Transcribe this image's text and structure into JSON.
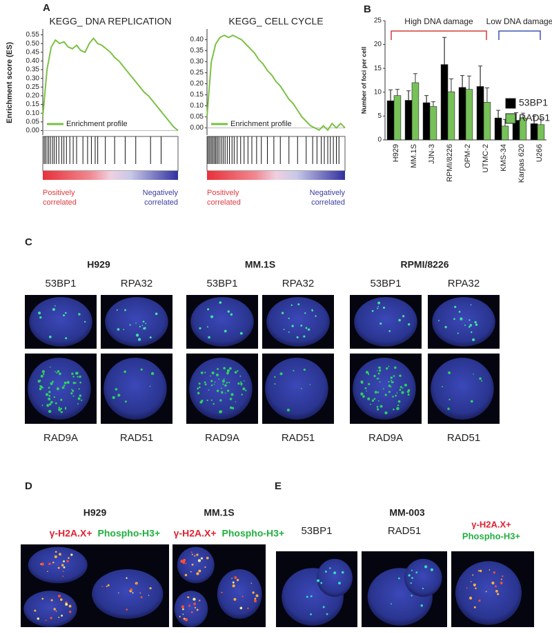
{
  "panels": {
    "a": "A",
    "b": "B",
    "c": "C",
    "d": "D",
    "e": "E"
  },
  "chart_data": [
    {
      "type": "line",
      "title": "KEGG_ DNA REPLICATION",
      "ylabel": "Enrichment score (ES)",
      "series": [
        {
          "name": "Enrichment profile",
          "color": "#7ac143",
          "values": [
            0.08,
            0.35,
            0.48,
            0.52,
            0.5,
            0.51,
            0.48,
            0.47,
            0.49,
            0.46,
            0.45,
            0.5,
            0.53,
            0.5,
            0.49,
            0.47,
            0.45,
            0.42,
            0.4,
            0.37,
            0.34,
            0.31,
            0.28,
            0.25,
            0.22,
            0.2,
            0.17,
            0.14,
            0.11,
            0.08,
            0.05,
            0.02,
            0.0
          ]
        }
      ],
      "hits": [
        0.3,
        0.6,
        1,
        1.4,
        1.8,
        2.3,
        2.7,
        3.2,
        3.8,
        4.5,
        5,
        5.6,
        6.4,
        7.2,
        8,
        9.5,
        10.6,
        11.5,
        12.4,
        13,
        14.8,
        17,
        19.5,
        22,
        25.5,
        28
      ],
      "ylim": [
        -0.01,
        0.56
      ],
      "yticks": [
        {
          "value": 0,
          "label": "0.00"
        },
        0.05,
        {
          "value": 0.1,
          "label": "0.10"
        },
        0.15,
        {
          "value": 0.2,
          "label": "0.20"
        },
        0.25,
        {
          "value": 0.3,
          "label": "0.30"
        },
        0.35,
        {
          "value": 0.4,
          "label": "0.40"
        },
        0.45,
        {
          "value": 0.5,
          "label": "0.50"
        },
        0.55
      ],
      "legend": "lower left",
      "left_label": [
        "Positively",
        "correlated"
      ],
      "right_label": [
        "Negatively",
        "correlated"
      ]
    },
    {
      "type": "line",
      "title": "KEGG_ CELL CYCLE",
      "series": [
        {
          "name": "Enrichment profile",
          "color": "#7ac143",
          "values": [
            0.05,
            0.3,
            0.38,
            0.41,
            0.42,
            0.41,
            0.42,
            0.41,
            0.4,
            0.38,
            0.36,
            0.34,
            0.31,
            0.29,
            0.26,
            0.24,
            0.21,
            0.19,
            0.16,
            0.13,
            0.11,
            0.08,
            0.05,
            0.03,
            0.01,
            0.0,
            -0.01,
            0.01,
            -0.01,
            0.02,
            0.0,
            0.02,
            0.0
          ]
        }
      ],
      "hits": [
        0.2,
        0.5,
        0.8,
        1.1,
        1.4,
        1.7,
        2,
        2.3,
        2.6,
        3,
        3.4,
        3.8,
        4.2,
        4.7,
        5.2,
        5.8,
        6.3,
        7,
        7.8,
        8.6,
        9.5,
        10.4,
        11.5,
        12.6,
        14,
        15.5,
        17,
        19,
        21,
        23,
        24.5,
        25.5,
        26.5,
        27.2,
        28,
        28.6,
        29.3,
        30,
        30.6
      ],
      "ylim": [
        -0.02,
        0.43
      ],
      "yticks": [
        {
          "value": 0,
          "label": "0.00"
        },
        0.05,
        {
          "value": 0.1,
          "label": "0.10"
        },
        0.15,
        {
          "value": 0.2,
          "label": "0.20"
        },
        0.25,
        {
          "value": 0.3,
          "label": "0.30"
        },
        0.35,
        {
          "value": 0.4,
          "label": "0.40"
        }
      ],
      "legend": "lower left",
      "left_label": [
        "Positively",
        "correlated"
      ],
      "right_label": [
        "Negatively",
        "correlated"
      ]
    },
    {
      "type": "bar",
      "ylabel": "Number of foci per cell",
      "categories": [
        "H929",
        "MM.1S",
        "JJN-3",
        "RPMI/8226",
        "OPM-2",
        "UTMC-2",
        "KMS-34",
        "Karpas 620",
        "U266"
      ],
      "series": [
        {
          "name": "53BP1",
          "color": "#000000",
          "values": [
            8.2,
            8.3,
            7.8,
            15.8,
            11,
            11.2,
            4.6,
            4.1,
            3.4
          ],
          "errors": [
            2.3,
            2,
            1.5,
            5.7,
            2.5,
            4.3,
            1.6,
            1.6,
            1.6
          ]
        },
        {
          "name": "RAD51",
          "color": "#77c159",
          "values": [
            9.3,
            12,
            7,
            10.1,
            10.6,
            7.9,
            2.9,
            4.6,
            3.2
          ],
          "errors": [
            1.3,
            1.9,
            1,
            2.7,
            2.8,
            3,
            1.4,
            1,
            1.2
          ]
        }
      ],
      "ylim": [
        0,
        25
      ],
      "yticks": [
        0,
        5,
        10,
        15,
        20,
        25
      ],
      "legend": "right",
      "groups": [
        {
          "label": "High DNA damage",
          "color": "#d23a3a",
          "span": [
            0,
            5
          ]
        },
        {
          "label": "Low DNA damage",
          "color": "#3a55b0",
          "span": [
            6,
            8
          ]
        }
      ]
    }
  ],
  "panel_c": [
    {
      "title": "H929",
      "top": [
        "53BP1",
        "RPA32"
      ],
      "bottom": [
        "RAD9A",
        "RAD51"
      ]
    },
    {
      "title": "MM.1S",
      "top": [
        "53BP1",
        "RPA32"
      ],
      "bottom": [
        "RAD9A",
        "RAD51"
      ]
    },
    {
      "title": "RPMI/8226",
      "top": [
        "53BP1",
        "RPA32"
      ],
      "bottom": [
        "RAD9A",
        "RAD51"
      ]
    }
  ],
  "panel_d": [
    {
      "title": "H929",
      "markers": [
        "γ-H2A.X+",
        "Phospho-H3+"
      ]
    },
    {
      "title": "MM.1S",
      "markers": [
        "γ-H2A.X+",
        "Phospho-H3+"
      ]
    }
  ],
  "panel_e": {
    "title": "MM-003",
    "labels": [
      "53BP1",
      "RAD51"
    ],
    "merge": [
      "γ-H2A.X+",
      "Phospho-H3+"
    ]
  }
}
